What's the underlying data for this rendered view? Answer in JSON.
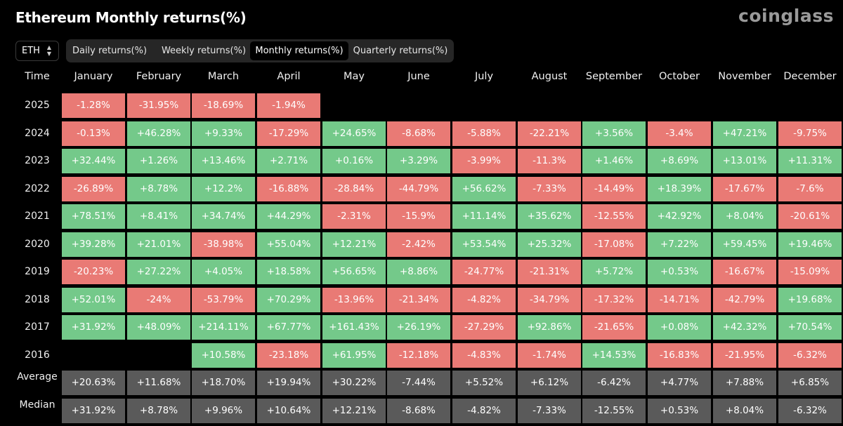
{
  "title": "Ethereum Monthly returns(%)",
  "brand": "coinglass",
  "asset_selector": {
    "value": "ETH",
    "icon": "chevron-updown-icon"
  },
  "tabs": [
    {
      "label": "Daily returns(%)",
      "active": false
    },
    {
      "label": "Weekly returns(%)",
      "active": false
    },
    {
      "label": "Monthly returns(%)",
      "active": true
    },
    {
      "label": "Quarterly returns(%)",
      "active": false
    }
  ],
  "colors": {
    "positive": "#74c98a",
    "negative": "#e97a75",
    "summary": "#5a5a5a",
    "background": "#000000"
  },
  "table": {
    "time_header": "Time",
    "months": [
      "January",
      "February",
      "March",
      "April",
      "May",
      "June",
      "July",
      "August",
      "September",
      "October",
      "November",
      "December"
    ],
    "rows": [
      {
        "year": "2025",
        "values": [
          "-1.28%",
          "-31.95%",
          "-18.69%",
          "-1.94%",
          null,
          null,
          null,
          null,
          null,
          null,
          null,
          null
        ]
      },
      {
        "year": "2024",
        "values": [
          "-0.13%",
          "+46.28%",
          "+9.33%",
          "-17.29%",
          "+24.65%",
          "-8.68%",
          "-5.88%",
          "-22.21%",
          "+3.56%",
          "-3.4%",
          "+47.21%",
          "-9.75%"
        ]
      },
      {
        "year": "2023",
        "values": [
          "+32.44%",
          "+1.26%",
          "+13.46%",
          "+2.71%",
          "+0.16%",
          "+3.29%",
          "-3.99%",
          "-11.3%",
          "+1.46%",
          "+8.69%",
          "+13.01%",
          "+11.31%"
        ]
      },
      {
        "year": "2022",
        "values": [
          "-26.89%",
          "+8.78%",
          "+12.2%",
          "-16.88%",
          "-28.84%",
          "-44.79%",
          "+56.62%",
          "-7.33%",
          "-14.49%",
          "+18.39%",
          "-17.67%",
          "-7.6%"
        ]
      },
      {
        "year": "2021",
        "values": [
          "+78.51%",
          "+8.41%",
          "+34.74%",
          "+44.29%",
          "-2.31%",
          "-15.9%",
          "+11.14%",
          "+35.62%",
          "-12.55%",
          "+42.92%",
          "+8.04%",
          "-20.61%"
        ]
      },
      {
        "year": "2020",
        "values": [
          "+39.28%",
          "+21.01%",
          "-38.98%",
          "+55.04%",
          "+12.21%",
          "-2.42%",
          "+53.54%",
          "+25.32%",
          "-17.08%",
          "+7.22%",
          "+59.45%",
          "+19.46%"
        ]
      },
      {
        "year": "2019",
        "values": [
          "-20.23%",
          "+27.22%",
          "+4.05%",
          "+18.58%",
          "+56.65%",
          "+8.86%",
          "-24.77%",
          "-21.31%",
          "+5.72%",
          "+0.53%",
          "-16.67%",
          "-15.09%"
        ]
      },
      {
        "year": "2018",
        "values": [
          "+52.01%",
          "-24%",
          "-53.79%",
          "+70.29%",
          "-13.96%",
          "-21.34%",
          "-4.82%",
          "-34.79%",
          "-17.32%",
          "-14.71%",
          "-42.79%",
          "+19.68%"
        ]
      },
      {
        "year": "2017",
        "values": [
          "+31.92%",
          "+48.09%",
          "+214.11%",
          "+67.77%",
          "+161.43%",
          "+26.19%",
          "-27.29%",
          "+92.86%",
          "-21.65%",
          "+0.08%",
          "+42.32%",
          "+70.54%"
        ]
      },
      {
        "year": "2016",
        "values": [
          null,
          null,
          "+10.58%",
          "-23.18%",
          "+61.95%",
          "-12.18%",
          "-4.83%",
          "-1.74%",
          "+14.53%",
          "-16.83%",
          "-21.95%",
          "-6.32%"
        ]
      }
    ],
    "summary_rows": [
      {
        "label": "Average",
        "values": [
          "+20.63%",
          "+11.68%",
          "+18.70%",
          "+19.94%",
          "+30.22%",
          "-7.44%",
          "+5.52%",
          "+6.12%",
          "-6.42%",
          "+4.77%",
          "+7.88%",
          "+6.85%"
        ]
      },
      {
        "label": "Median",
        "values": [
          "+31.92%",
          "+8.78%",
          "+9.96%",
          "+10.64%",
          "+12.21%",
          "-8.68%",
          "-4.82%",
          "-7.33%",
          "-12.55%",
          "+0.53%",
          "+8.04%",
          "-6.32%"
        ]
      }
    ]
  }
}
